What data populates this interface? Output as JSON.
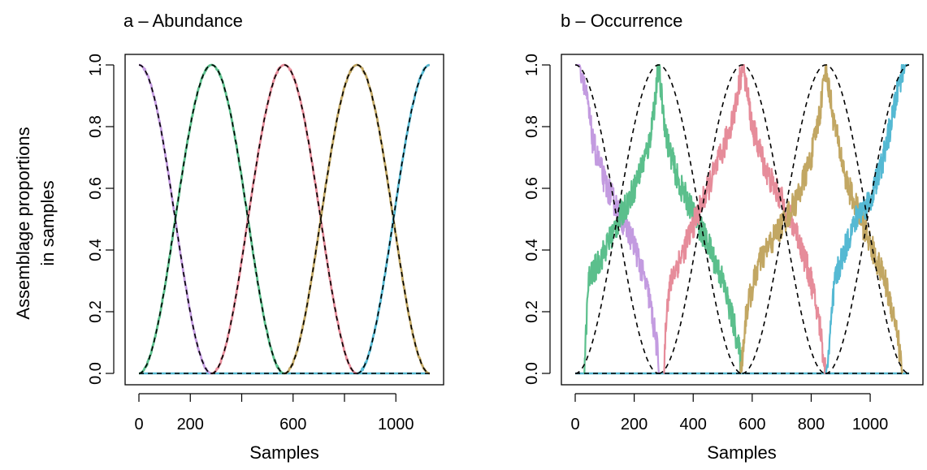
{
  "figure": {
    "y_axis_label_line1": "Assemblage proportions",
    "y_axis_label_line2": "in samples"
  },
  "colors": {
    "purple": "#c39be0",
    "green": "#5bbf8c",
    "red": "#e68c9a",
    "gold": "#c2a763",
    "cyan": "#55b9d3",
    "expected_curve": "#000000"
  },
  "chart_data": [
    {
      "type": "line",
      "title": "a – Abundance",
      "xlabel": "Samples",
      "ylabel": "Assemblage proportions in samples",
      "xlim": [
        -40,
        1160
      ],
      "ylim": [
        0,
        1
      ],
      "xticks": [
        0,
        200,
        600,
        1000
      ],
      "xtick_labels": [
        "0",
        "200",
        "600",
        "1000"
      ],
      "xtick_marks": [
        0,
        200,
        400,
        600,
        800,
        1000
      ],
      "yticks": [
        0.0,
        0.2,
        0.4,
        0.6,
        0.8,
        1.0
      ],
      "ytick_labels": [
        "0.0",
        "0.2",
        "0.4",
        "0.6",
        "0.8",
        "1.0"
      ],
      "grid": false,
      "legend": "none",
      "noise": 0.004,
      "series": [
        {
          "color_key": "purple",
          "x": [
            0,
            283
          ],
          "y": [
            1.0,
            0.0
          ],
          "rise": false,
          "fall": true
        },
        {
          "color_key": "green",
          "x": [
            0,
            283,
            566
          ],
          "y": [
            0.0,
            1.0,
            0.0
          ],
          "rise": true,
          "fall": true
        },
        {
          "color_key": "red",
          "x": [
            283,
            566,
            849
          ],
          "y": [
            0.0,
            1.0,
            0.0
          ],
          "rise": true,
          "fall": true
        },
        {
          "color_key": "gold",
          "x": [
            566,
            849,
            1132
          ],
          "y": [
            0.0,
            1.0,
            0.0
          ],
          "rise": true,
          "fall": true
        },
        {
          "color_key": "cyan",
          "x": [
            849,
            1132
          ],
          "y": [
            0.0,
            1.0
          ],
          "rise": true,
          "fall": false
        }
      ],
      "expected_curves": [
        {
          "x": [
            0,
            283
          ],
          "y": [
            1.0,
            0.0
          ],
          "rise": false,
          "fall": true
        },
        {
          "x": [
            0,
            283,
            566
          ],
          "y": [
            0.0,
            1.0,
            0.0
          ],
          "rise": true,
          "fall": true
        },
        {
          "x": [
            283,
            566,
            849
          ],
          "y": [
            0.0,
            1.0,
            0.0
          ],
          "rise": true,
          "fall": true
        },
        {
          "x": [
            566,
            849,
            1132
          ],
          "y": [
            0.0,
            1.0,
            0.0
          ],
          "rise": true,
          "fall": true
        },
        {
          "x": [
            849,
            1132
          ],
          "y": [
            0.0,
            1.0
          ],
          "rise": true,
          "fall": false
        }
      ]
    },
    {
      "type": "line",
      "title": "b – Occurrence",
      "xlabel": "Samples",
      "ylabel": "",
      "xlim": [
        -40,
        1160
      ],
      "ylim": [
        0,
        1
      ],
      "xticks": [
        0,
        200,
        400,
        600,
        800,
        1000
      ],
      "xtick_labels": [
        "0",
        "200",
        "400",
        "600",
        "800",
        "1000"
      ],
      "xtick_marks": [
        0,
        200,
        400,
        600,
        800,
        1000
      ],
      "yticks": [
        0.0,
        0.2,
        0.4,
        0.6,
        0.8,
        1.0
      ],
      "ytick_labels": [
        "0.0",
        "0.2",
        "0.4",
        "0.6",
        "0.8",
        "1.0"
      ],
      "grid": false,
      "legend": "none",
      "noise": 0.045,
      "series": [
        {
          "color_key": "purple",
          "x": [
            0,
            15,
            30,
            60,
            100,
            150,
            200,
            250,
            278,
            285
          ],
          "y": [
            1.0,
            1.0,
            0.95,
            0.75,
            0.62,
            0.52,
            0.42,
            0.25,
            0.08,
            0.0
          ]
        },
        {
          "color_key": "green",
          "x": [
            30,
            35,
            45,
            90,
            150,
            200,
            250,
            275,
            283,
            290,
            310,
            350,
            400,
            450,
            500,
            540,
            560,
            565
          ],
          "y": [
            0.0,
            0.1,
            0.3,
            0.38,
            0.5,
            0.6,
            0.74,
            0.92,
            1.0,
            0.92,
            0.76,
            0.62,
            0.52,
            0.42,
            0.3,
            0.15,
            0.05,
            0.0
          ]
        },
        {
          "color_key": "red",
          "x": [
            300,
            310,
            330,
            360,
            400,
            450,
            500,
            540,
            560,
            566,
            575,
            600,
            650,
            700,
            750,
            800,
            830,
            845,
            850
          ],
          "y": [
            0.0,
            0.22,
            0.32,
            0.38,
            0.48,
            0.6,
            0.72,
            0.85,
            0.96,
            1.0,
            0.96,
            0.8,
            0.65,
            0.56,
            0.46,
            0.3,
            0.15,
            0.03,
            0.0
          ]
        },
        {
          "color_key": "gold",
          "x": [
            560,
            566,
            580,
            620,
            660,
            700,
            750,
            800,
            830,
            849,
            860,
            880,
            920,
            960,
            1000,
            1050,
            1090,
            1105,
            1110
          ],
          "y": [
            0.0,
            0.05,
            0.2,
            0.35,
            0.42,
            0.48,
            0.56,
            0.7,
            0.85,
            1.0,
            0.92,
            0.8,
            0.62,
            0.52,
            0.42,
            0.3,
            0.15,
            0.03,
            0.0
          ]
        },
        {
          "color_key": "cyan",
          "x": [
            850,
            858,
            880,
            920,
            960,
            1000,
            1040,
            1080,
            1100,
            1120,
            1132
          ],
          "y": [
            0.0,
            0.05,
            0.3,
            0.42,
            0.52,
            0.56,
            0.68,
            0.85,
            0.95,
            1.0,
            1.0
          ]
        }
      ],
      "expected_curves": [
        {
          "x": [
            0,
            283
          ],
          "y": [
            1.0,
            0.0
          ],
          "rise": false,
          "fall": true
        },
        {
          "x": [
            0,
            283,
            566
          ],
          "y": [
            0.0,
            1.0,
            0.0
          ],
          "rise": true,
          "fall": true
        },
        {
          "x": [
            283,
            566,
            849
          ],
          "y": [
            0.0,
            1.0,
            0.0
          ],
          "rise": true,
          "fall": true
        },
        {
          "x": [
            566,
            849,
            1132
          ],
          "y": [
            0.0,
            1.0,
            0.0
          ],
          "rise": true,
          "fall": true
        },
        {
          "x": [
            849,
            1132
          ],
          "y": [
            0.0,
            1.0
          ],
          "rise": true,
          "fall": false
        }
      ]
    }
  ]
}
